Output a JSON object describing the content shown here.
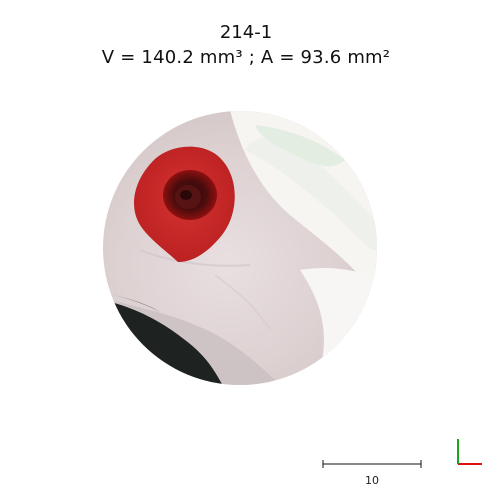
{
  "header": {
    "sample_id": "214-1",
    "measurements": "V = 140.2 mm³ ; A = 93.6 mm²"
  },
  "scale_bar": {
    "label": "10"
  },
  "colors": {
    "lesion_overlay": "#c21515",
    "skin": "#e6dcdc",
    "axis_x": "#e01010",
    "axis_y": "#1aa61a"
  },
  "icons": {
    "orientation": "axis-triad-icon"
  }
}
